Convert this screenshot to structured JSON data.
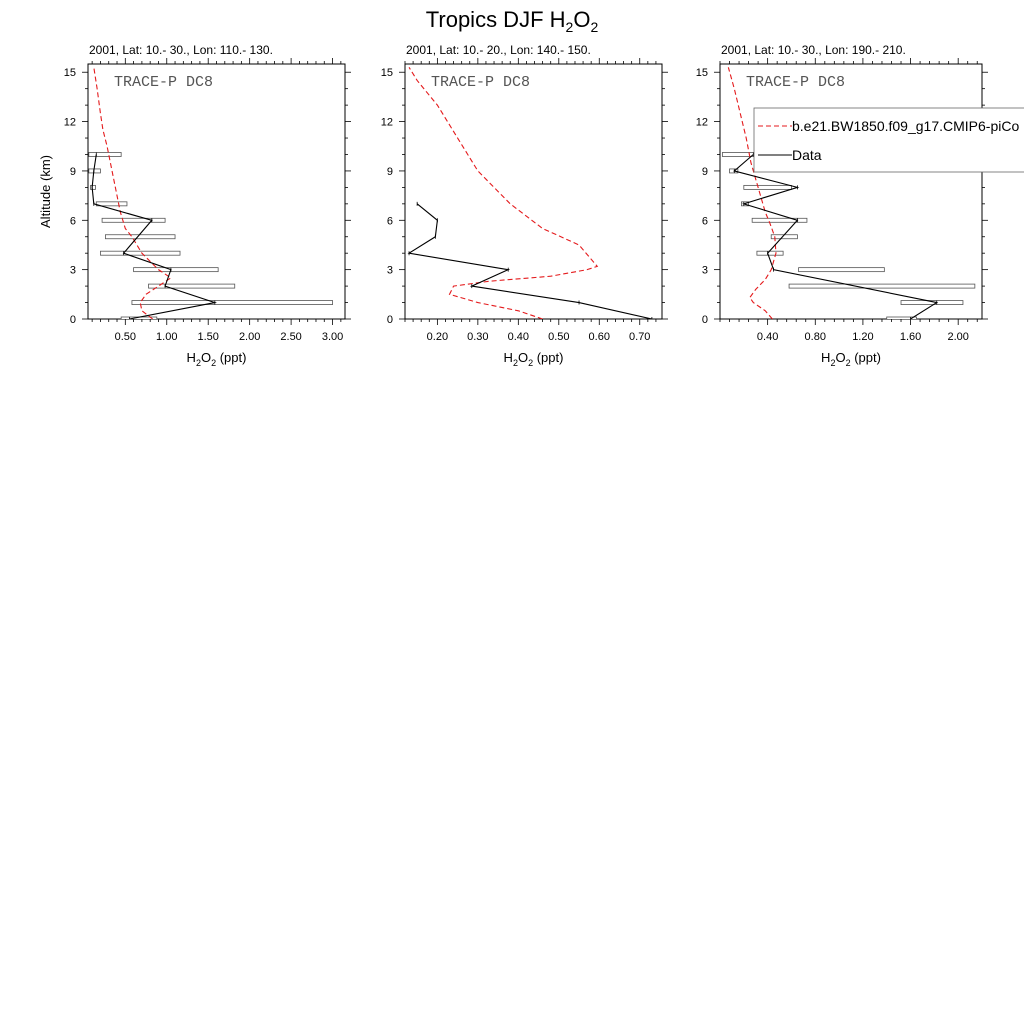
{
  "figure": {
    "title_main": "Tropics DJF H",
    "title_sub1": "2",
    "title_mid": "O",
    "title_sub2": "2"
  },
  "colors": {
    "model": "#e41a1c",
    "data": "#000000",
    "box": "#555555",
    "axis": "#000000"
  },
  "legend": {
    "model_label": "b.e21.BW1850.f09_g17.CMIP6-piCo",
    "data_label": "Data"
  },
  "chart_data": [
    {
      "type": "line",
      "title": "2001, Lat: 10.- 30., Lon: 110.- 130.",
      "annotation": "TRACE-P DC8",
      "xlabel_main": "H",
      "xlabel_sub1": "2",
      "xlabel_mid": "O",
      "xlabel_sub2": "2",
      "xlabel_unit": " (ppt)",
      "ylabel": "Altitude (km)",
      "xlim": [
        0.05,
        3.15
      ],
      "ylim": [
        0,
        15.5
      ],
      "xticks": [
        0.5,
        1.0,
        1.5,
        2.0,
        2.5,
        3.0
      ],
      "xtick_labels": [
        "0.50",
        "1.00",
        "1.50",
        "2.00",
        "2.50",
        "3.00"
      ],
      "yticks": [
        0,
        3,
        6,
        9,
        12,
        15
      ],
      "ytick_labels": [
        "0",
        "3",
        "6",
        "9",
        "12",
        "15"
      ],
      "model": {
        "x": [
          0.83,
          0.7,
          0.68,
          0.75,
          0.9,
          1.05,
          0.9,
          0.7,
          0.58,
          0.5,
          0.44,
          0.4,
          0.36,
          0.32,
          0.28,
          0.23,
          0.2,
          0.16,
          0.12
        ],
        "y": [
          0,
          0.5,
          1,
          1.5,
          2,
          2.5,
          3,
          4,
          5,
          5.5,
          6.5,
          7.5,
          8.5,
          9.5,
          10.5,
          11.5,
          12.5,
          14,
          15.3
        ]
      },
      "data": {
        "x": [
          0.55,
          1.58,
          0.98,
          1.05,
          0.48,
          0.82,
          0.12,
          0.1,
          0.12,
          0.15
        ],
        "y": [
          0,
          1,
          2,
          3,
          4,
          6,
          7,
          8,
          9,
          10
        ]
      },
      "boxes": [
        {
          "y": 0,
          "x1": 0.45,
          "x2": 0.88
        },
        {
          "y": 1,
          "x1": 0.58,
          "x2": 3.0
        },
        {
          "y": 2,
          "x1": 0.78,
          "x2": 1.82
        },
        {
          "y": 3,
          "x1": 0.6,
          "x2": 1.62
        },
        {
          "y": 4,
          "x1": 0.2,
          "x2": 1.16
        },
        {
          "y": 5,
          "x1": 0.26,
          "x2": 1.1
        },
        {
          "y": 6,
          "x1": 0.22,
          "x2": 0.98
        },
        {
          "y": 7,
          "x1": 0.15,
          "x2": 0.52
        },
        {
          "y": 8,
          "x1": 0.08,
          "x2": 0.14
        },
        {
          "y": 9,
          "x1": 0.06,
          "x2": 0.2
        },
        {
          "y": 10,
          "x1": 0.06,
          "x2": 0.45
        }
      ]
    },
    {
      "type": "line",
      "title": "2001, Lat: 10.- 20., Lon: 140.- 150.",
      "annotation": "TRACE-P DC8",
      "xlabel_main": "H",
      "xlabel_sub1": "2",
      "xlabel_mid": "O",
      "xlabel_sub2": "2",
      "xlabel_unit": " (ppt)",
      "ylabel": "",
      "xlim": [
        0.12,
        0.755
      ],
      "ylim": [
        0,
        15.5
      ],
      "xticks": [
        0.2,
        0.3,
        0.4,
        0.5,
        0.6,
        0.7
      ],
      "xtick_labels": [
        "0.20",
        "0.30",
        "0.40",
        "0.50",
        "0.60",
        "0.70"
      ],
      "yticks": [
        0,
        3,
        6,
        9,
        12,
        15
      ],
      "ytick_labels": [
        "0",
        "3",
        "6",
        "9",
        "12",
        "15"
      ],
      "model": {
        "x": [
          0.46,
          0.4,
          0.3,
          0.23,
          0.24,
          0.33,
          0.48,
          0.57,
          0.595,
          0.55,
          0.46,
          0.38,
          0.3,
          0.25,
          0.2,
          0.15,
          0.13
        ],
        "y": [
          0,
          0.5,
          1,
          1.5,
          2,
          2.3,
          2.6,
          3,
          3.2,
          4.5,
          5.5,
          7,
          9,
          11,
          13,
          14.5,
          15.3
        ]
      },
      "data": {
        "x": [
          0.73,
          0.55,
          0.285,
          0.375,
          0.13,
          0.195,
          0.2,
          0.15
        ],
        "y": [
          0,
          1,
          2,
          3,
          4,
          5,
          6,
          7
        ]
      },
      "boxes": []
    },
    {
      "type": "line",
      "title": "2001, Lat: 10.- 30., Lon: 190.- 210.",
      "annotation": "TRACE-P DC8",
      "xlabel_main": "H",
      "xlabel_sub1": "2",
      "xlabel_mid": "O",
      "xlabel_sub2": "2",
      "xlabel_unit": " (ppt)",
      "ylabel": "",
      "xlim": [
        0.0,
        2.2
      ],
      "ylim": [
        0,
        15.5
      ],
      "xticks": [
        0.4,
        0.8,
        1.2,
        1.6,
        2.0
      ],
      "xtick_labels": [
        "0.40",
        "0.80",
        "1.20",
        "1.60",
        "2.00"
      ],
      "yticks": [
        0,
        3,
        6,
        9,
        12,
        15
      ],
      "ytick_labels": [
        "0",
        "3",
        "6",
        "9",
        "12",
        "15"
      ],
      "model": {
        "x": [
          0.44,
          0.38,
          0.28,
          0.25,
          0.3,
          0.38,
          0.43,
          0.47,
          0.46,
          0.42,
          0.38,
          0.34,
          0.3,
          0.26,
          0.22,
          0.17,
          0.12,
          0.07
        ],
        "y": [
          0,
          0.5,
          1,
          1.3,
          1.8,
          2.4,
          3,
          4,
          5,
          5.8,
          6.5,
          7.5,
          8.5,
          9.5,
          11,
          12.5,
          14,
          15.3
        ]
      },
      "data": {
        "x": [
          1.6,
          1.82,
          0.45,
          0.4,
          0.65,
          0.2,
          0.65,
          0.12,
          0.28
        ],
        "y": [
          0,
          1,
          3,
          4,
          6,
          7,
          8,
          9,
          10
        ]
      },
      "boxes": [
        {
          "y": 0,
          "x1": 1.4,
          "x2": 1.65
        },
        {
          "y": 1,
          "x1": 1.52,
          "x2": 2.04
        },
        {
          "y": 2,
          "x1": 0.58,
          "x2": 2.14
        },
        {
          "y": 3,
          "x1": 0.66,
          "x2": 1.38
        },
        {
          "y": 4,
          "x1": 0.31,
          "x2": 0.53
        },
        {
          "y": 5,
          "x1": 0.43,
          "x2": 0.65
        },
        {
          "y": 6,
          "x1": 0.27,
          "x2": 0.73
        },
        {
          "y": 7,
          "x1": 0.18,
          "x2": 0.24
        },
        {
          "y": 8,
          "x1": 0.2,
          "x2": 0.6
        },
        {
          "y": 9,
          "x1": 0.08,
          "x2": 0.15
        },
        {
          "y": 10,
          "x1": 0.02,
          "x2": 0.3
        }
      ]
    }
  ]
}
